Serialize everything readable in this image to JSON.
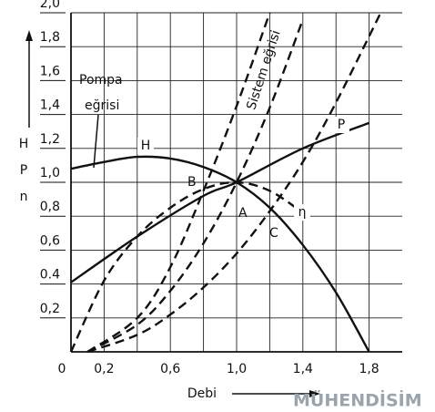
{
  "chart_data": {
    "type": "line",
    "x_label": "Debi",
    "y_label": [
      "H",
      "P",
      "n"
    ],
    "origin_label": "0",
    "xlim": [
      0,
      2.0
    ],
    "ylim": [
      0,
      2.0
    ],
    "xticks": [
      {
        "value": 0.2,
        "label": "0,2"
      },
      {
        "value": 0.4,
        "label": null
      },
      {
        "value": 0.6,
        "label": "0,6"
      },
      {
        "value": 0.8,
        "label": null
      },
      {
        "value": 1.0,
        "label": "1,0"
      },
      {
        "value": 1.2,
        "label": null
      },
      {
        "value": 1.4,
        "label": "1,4"
      },
      {
        "value": 1.6,
        "label": null
      },
      {
        "value": 1.8,
        "label": "1,8"
      }
    ],
    "yticks": [
      {
        "value": 0.2,
        "label": "0,2"
      },
      {
        "value": 0.4,
        "label": "0.4"
      },
      {
        "value": 0.6,
        "label": "0,6"
      },
      {
        "value": 0.8,
        "label": "0,8"
      },
      {
        "value": 1.0,
        "label": "1,0"
      },
      {
        "value": 1.2,
        "label": "1,2"
      },
      {
        "value": 1.4,
        "label": "1,4"
      },
      {
        "value": 1.6,
        "label": "1,6"
      },
      {
        "value": 1.8,
        "label": "1,8"
      },
      {
        "value": 2.0,
        "label": "2,0"
      }
    ],
    "grid": true,
    "series": [
      {
        "name": "H",
        "color": "#111",
        "dashed": false,
        "x": [
          0,
          0.2,
          0.4,
          0.6,
          0.8,
          1.0,
          1.2,
          1.4,
          1.6,
          1.8
        ],
        "values": [
          1.08,
          1.12,
          1.15,
          1.14,
          1.09,
          1.0,
          0.85,
          0.63,
          0.35,
          0.0
        ]
      },
      {
        "name": "P",
        "color": "#111",
        "dashed": false,
        "x": [
          0,
          0.4,
          0.8,
          1.0,
          1.4,
          1.8
        ],
        "values": [
          0.41,
          0.68,
          0.92,
          1.0,
          1.2,
          1.35
        ]
      },
      {
        "name": "η",
        "color": "#111",
        "dashed": true,
        "x": [
          0,
          0.2,
          0.4,
          0.6,
          0.8,
          1.0,
          1.2,
          1.4
        ],
        "values": [
          0,
          0.42,
          0.68,
          0.85,
          0.96,
          1.0,
          0.95,
          0.82
        ]
      },
      {
        "color": "#111",
        "dashed": true,
        "x": [
          0.1,
          0.4,
          0.6,
          0.8,
          1.0,
          1.2
        ],
        "values": [
          0,
          0.2,
          0.5,
          0.95,
          1.45,
          2.0
        ]
      },
      {
        "color": "#111",
        "dashed": true,
        "x": [
          0.1,
          0.4,
          0.6,
          0.8,
          1.0,
          1.2,
          1.4
        ],
        "values": [
          0,
          0.16,
          0.36,
          0.64,
          1.0,
          1.44,
          1.96
        ]
      },
      {
        "color": "#111",
        "dashed": true,
        "x": [
          0.1,
          0.4,
          0.6,
          0.8,
          1.0,
          1.2,
          1.4,
          1.6,
          1.87
        ],
        "values": [
          0,
          0.1,
          0.22,
          0.38,
          0.58,
          0.83,
          1.12,
          1.47,
          2.0
        ]
      }
    ],
    "annotations": [
      "Pompa",
      "eğrisi",
      "Sistem eğrisi",
      "B",
      "A",
      "C"
    ],
    "watermark": "MÜHENDİSİM"
  }
}
